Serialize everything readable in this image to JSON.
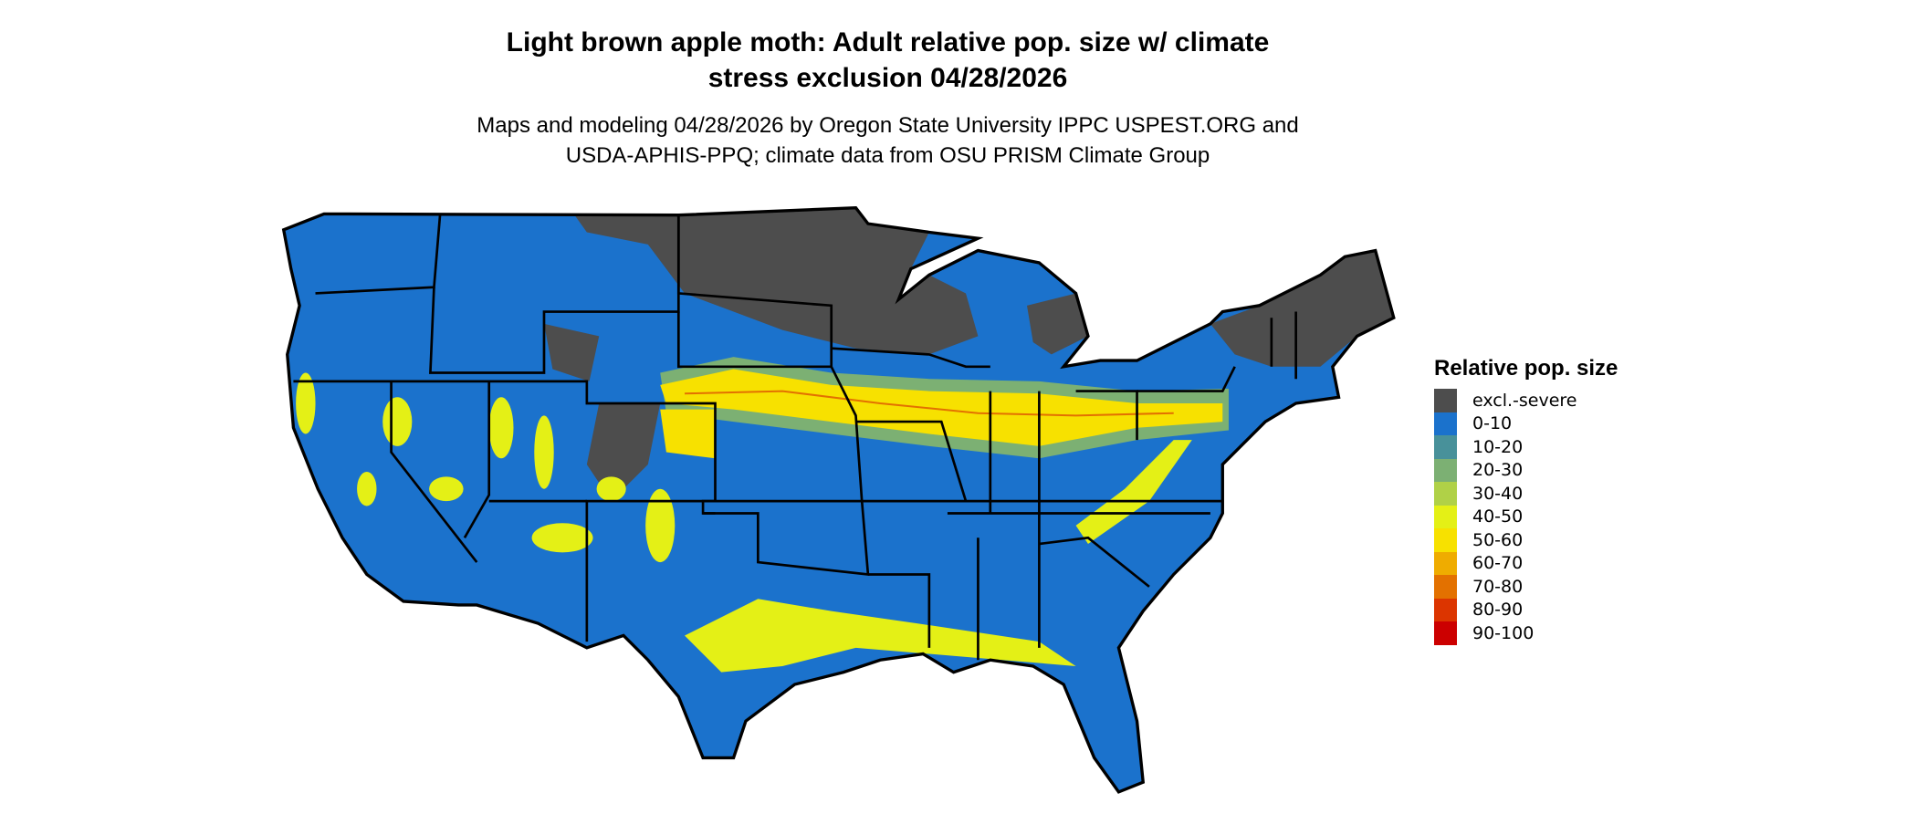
{
  "title": {
    "line1": "Light brown apple moth: Adult relative pop. size w/ climate",
    "line2": "stress exclusion 04/28/2026"
  },
  "subtitle": {
    "line1": "Maps and modeling 04/28/2026 by Oregon State University IPPC USPEST.ORG and",
    "line2": "USDA-APHIS-PPQ; climate data from OSU PRISM Climate Group"
  },
  "map": {
    "region": "Contiguous United States",
    "border_color": "#000000"
  },
  "legend": {
    "title": "Relative pop. size",
    "items": [
      {
        "label": "excl.-severe",
        "color": "#4d4d4d"
      },
      {
        "label": "0-10",
        "color": "#1b72cc"
      },
      {
        "label": "10-20",
        "color": "#48919a"
      },
      {
        "label": "20-30",
        "color": "#7cb073"
      },
      {
        "label": "30-40",
        "color": "#b0d147"
      },
      {
        "label": "40-50",
        "color": "#e4f016"
      },
      {
        "label": "50-60",
        "color": "#f7e100"
      },
      {
        "label": "60-70",
        "color": "#efac00"
      },
      {
        "label": "70-80",
        "color": "#e37100"
      },
      {
        "label": "80-90",
        "color": "#dc3500"
      },
      {
        "label": "90-100",
        "color": "#cc0000"
      }
    ]
  }
}
